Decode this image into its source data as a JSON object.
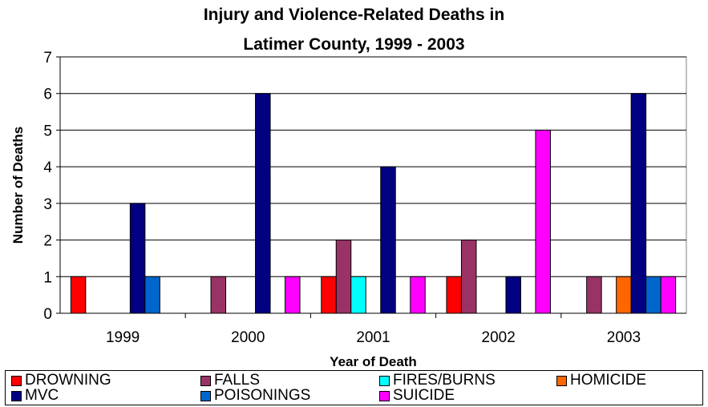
{
  "chart_data": {
    "type": "bar",
    "title": [
      "Injury and Violence-Related Deaths in",
      "Latimer County, 1999 - 2003"
    ],
    "xlabel": "Year of Death",
    "ylabel": "Number of Deaths",
    "ylim": [
      0,
      7
    ],
    "yticks": [
      "0",
      "1",
      "2",
      "3",
      "4",
      "5",
      "6",
      "7"
    ],
    "grid": true,
    "legend_position": "bottom",
    "categories": [
      "1999",
      "2000",
      "2001",
      "2002",
      "2003"
    ],
    "series": [
      {
        "name": "DROWNING",
        "color": "#ff0000",
        "values": [
          1,
          0,
          1,
          1,
          0
        ]
      },
      {
        "name": "FALLS",
        "color": "#993366",
        "values": [
          0,
          1,
          2,
          2,
          1
        ]
      },
      {
        "name": "FIRES/BURNS",
        "color": "#00ffff",
        "values": [
          0,
          0,
          1,
          0,
          0
        ]
      },
      {
        "name": "HOMICIDE",
        "color": "#ff6600",
        "values": [
          0,
          0,
          0,
          0,
          1
        ]
      },
      {
        "name": "MVC",
        "color": "#000080",
        "values": [
          3,
          6,
          4,
          1,
          6
        ]
      },
      {
        "name": "POISONINGS",
        "color": "#0066cc",
        "values": [
          1,
          0,
          0,
          0,
          1
        ]
      },
      {
        "name": "SUICIDE",
        "color": "#ff00ff",
        "values": [
          0,
          1,
          1,
          5,
          1
        ]
      }
    ]
  }
}
